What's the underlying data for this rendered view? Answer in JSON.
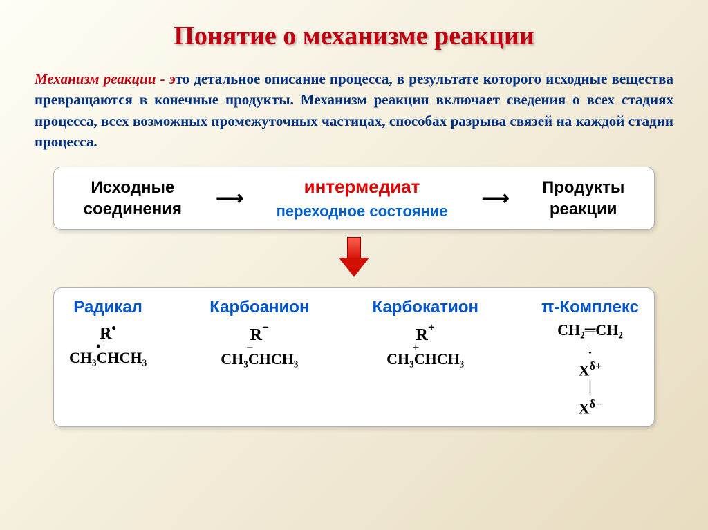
{
  "title": "Понятие о механизме реакции",
  "definition": {
    "term": "Механизм реакции",
    "suffix": " - э",
    "body": "то детальное описание процесса, в результате которого исходные вещества превращаются в конечные продукты. Механизм реакции включает сведения о всех стадиях процесса, всех возможных промежуточных частицах, способах разрыва связей на каждой стадии процесса."
  },
  "scheme1": {
    "left_top": "Исходные",
    "left_bottom": "соединения",
    "arrow1": "⟶",
    "intermediate": "интермедиат",
    "transition": "переходное состояние",
    "arrow2": "⟶",
    "right_top": "Продукты",
    "right_bottom": "реакции"
  },
  "species": [
    {
      "name": "Радикал",
      "symbol_prefix": "R",
      "symbol_mark": "•",
      "formula_top": "•",
      "formula": "CH₃CHCH₃"
    },
    {
      "name": "Карбоанион",
      "symbol_prefix": "R",
      "symbol_mark": "⁻",
      "formula_top": "−",
      "formula": "CH₃CHCH₃"
    },
    {
      "name": "Карбокатион",
      "symbol_prefix": "R",
      "symbol_mark": "⁺",
      "formula_top": "+",
      "formula": "CH₃CHCH₃"
    }
  ],
  "pi_complex": {
    "name": "π-Комплекс",
    "line1": "CH₂═CH₂",
    "arrow": "↓",
    "line2_base": "X",
    "line2_delta": "δ+",
    "bar": "│",
    "line3_base": "X",
    "line3_delta": "δ−"
  },
  "colors": {
    "title": "#c00010",
    "body_text": "#003080",
    "intermediate": "#e00000",
    "transition": "#0060d0",
    "species_name": "#0055cc",
    "box_bg": "#ffffff",
    "box_border": "#b0b0b0",
    "arrow_red": "#d01000"
  },
  "fonts": {
    "title_size": 38,
    "body_size": 21,
    "box_label_size": 24,
    "species_name_size": 24
  }
}
